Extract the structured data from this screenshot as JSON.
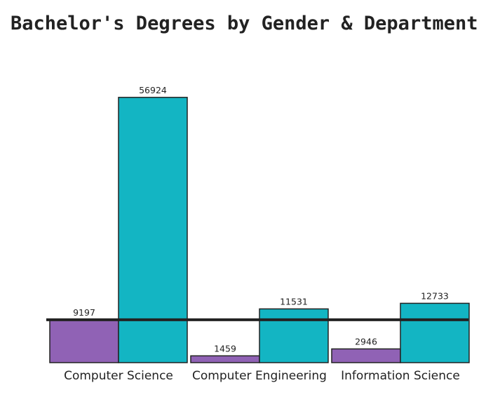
{
  "chart_data": {
    "type": "bar",
    "title": "Bachelor's Degrees by Gender & Department",
    "xlabel": "",
    "ylabel": "",
    "categories": [
      "Computer Science",
      "Computer Engineering",
      "Information Science"
    ],
    "series": [
      {
        "values": [
          9197,
          1459,
          2946
        ]
      },
      {
        "values": [
          56924,
          11531,
          12733
        ]
      }
    ],
    "series_colors": [
      "#9062b5",
      "#13b5c3"
    ],
    "reference_line": 9197,
    "ylim": [
      0,
      57500
    ],
    "grid": false,
    "legend": "none",
    "data_labels": true
  }
}
